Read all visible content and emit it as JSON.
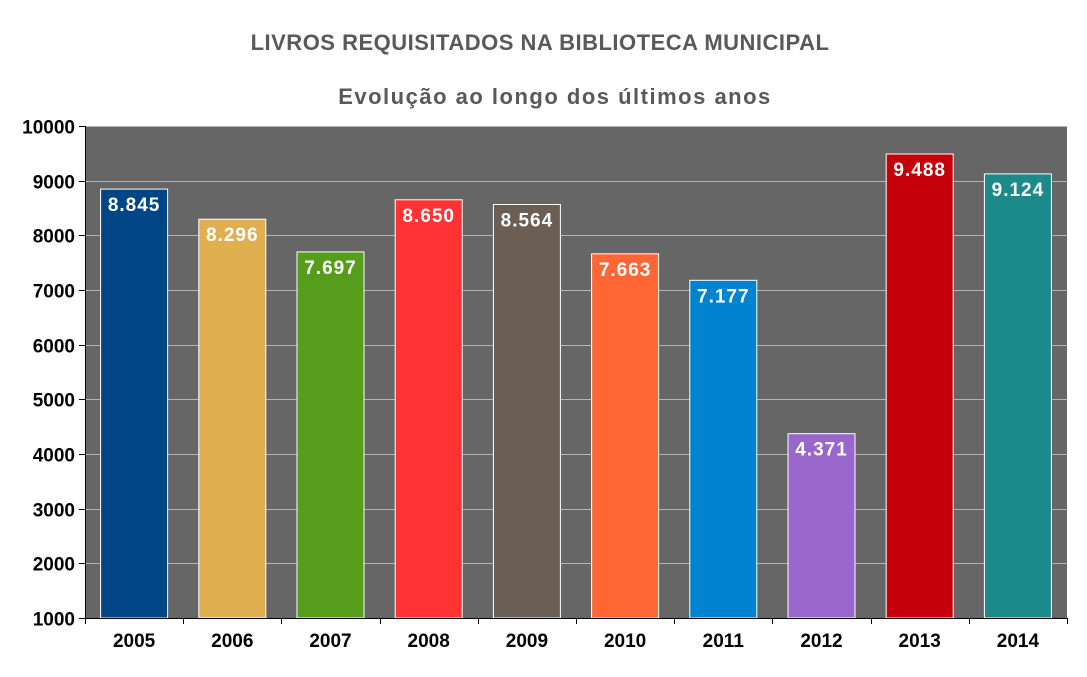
{
  "chart_data": {
    "type": "bar",
    "title": "LIVROS REQUISITADOS NA BIBLIOTECA MUNICIPAL",
    "subtitle": "Evolução ao longo dos últimos anos",
    "categories": [
      "2005",
      "2006",
      "2007",
      "2008",
      "2009",
      "2010",
      "2011",
      "2012",
      "2013",
      "2014"
    ],
    "values": [
      8845,
      8296,
      7697,
      8650,
      8564,
      7663,
      7177,
      4371,
      9488,
      9124
    ],
    "data_labels": [
      "8.845",
      "8.296",
      "7.697",
      "8.650",
      "8.564",
      "7.663",
      "7.177",
      "4.371",
      "9.488",
      "9.124"
    ],
    "colors": [
      "#004586",
      "#E0B050",
      "#579D1C",
      "#FF3333",
      "#6B5F55",
      "#FF6633",
      "#0084D1",
      "#9966CC",
      "#C5000B",
      "#1A8A8A"
    ],
    "ylim": [
      1000,
      10000
    ],
    "yticks": [
      1000,
      2000,
      3000,
      4000,
      5000,
      6000,
      7000,
      8000,
      9000,
      10000
    ],
    "xlabel": "",
    "ylabel": "",
    "grid": true,
    "plot_background": "#666666",
    "grid_color": "#B3B3B3"
  }
}
